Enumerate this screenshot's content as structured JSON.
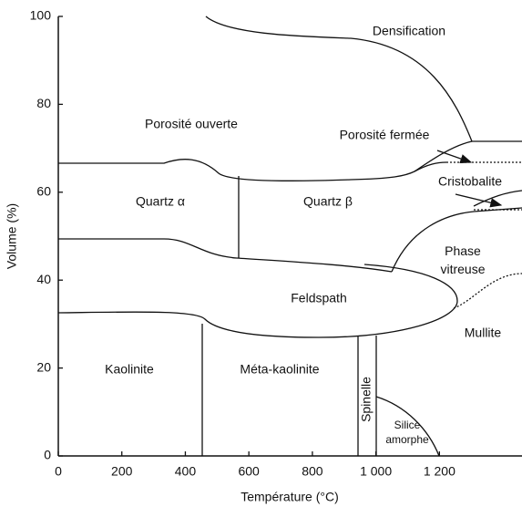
{
  "chart_data": {
    "type": "phase-diagram",
    "x_label": "Température (°C)",
    "y_label": "Volume (%)",
    "xlim": [
      0,
      1460
    ],
    "ylim": [
      0,
      100
    ],
    "xticks": [
      0,
      200,
      400,
      600,
      800,
      {
        "value": 1000,
        "label": "1 000"
      },
      {
        "value": 1200,
        "label": "1 200"
      }
    ],
    "yticks": [
      0,
      20,
      40,
      60,
      80,
      100
    ],
    "annotations": [
      "Densification",
      "Porosité ouverte",
      "Porosité fermée",
      "Cristobalite",
      "Quartz α",
      "Quartz β",
      "Phase vitreuse",
      "Feldspath",
      "Mullite",
      "Kaolinite",
      "Méta-kaolinite",
      "Spinelle",
      "Silice amorphe"
    ]
  }
}
